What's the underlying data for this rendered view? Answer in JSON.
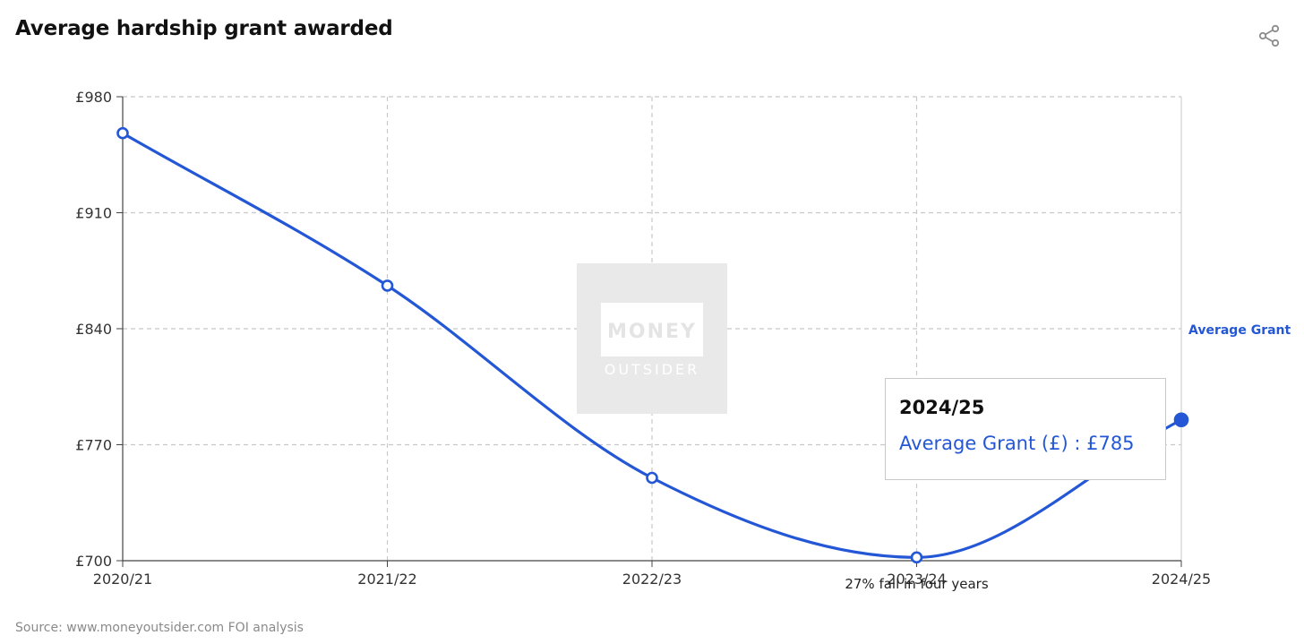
{
  "title": "Average hardship grant awarded",
  "source": "Source: www.moneyoutsider.com FOI analysis",
  "share_icon": "share-icon",
  "watermark": {
    "line1": "MONEY",
    "line2": "OUTSIDER"
  },
  "tooltip": {
    "title": "2024/25",
    "series": "Average Grant (£)",
    "separator": " : ",
    "value": "£785"
  },
  "colors": {
    "series": "#2457d6",
    "grid": "#c8c8c8",
    "axis": "#444444",
    "text": "#333333"
  },
  "chart_data": {
    "type": "line",
    "title": "Average hardship grant awarded",
    "xlabel": "",
    "ylabel": "",
    "categories": [
      "2020/21",
      "2021/22",
      "2022/23",
      "2023/24",
      "2024/25"
    ],
    "series": [
      {
        "name": "Average Grant",
        "values": [
          958,
          866,
          750,
          702,
          785
        ]
      }
    ],
    "ylim": [
      700,
      980
    ],
    "yticks": [
      700,
      770,
      840,
      910,
      980
    ],
    "ytick_labels": [
      "£700",
      "£770",
      "£840",
      "£910",
      "£980"
    ],
    "grid": true,
    "legend": "right",
    "annotations": [
      {
        "x": "2023/24",
        "text": "27% fall in four years"
      }
    ]
  }
}
